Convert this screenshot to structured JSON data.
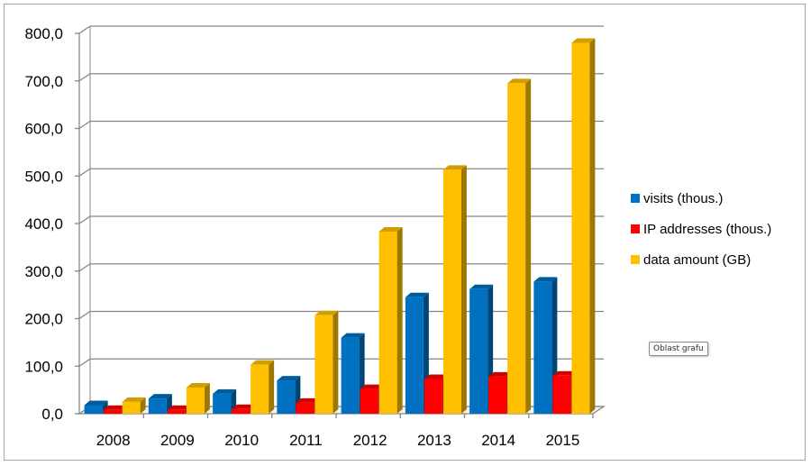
{
  "chart_data": {
    "type": "bar",
    "categories": [
      "2008",
      "2009",
      "2010",
      "2011",
      "2012",
      "2013",
      "2014",
      "2015"
    ],
    "series": [
      {
        "name": "visits (thous.)",
        "color": "#0070c0",
        "values": [
          18,
          32,
          42,
          70,
          160,
          245,
          262,
          278
        ]
      },
      {
        "name": "IP addresses (thous.)",
        "color": "#ff0000",
        "values": [
          8,
          8,
          10,
          23,
          52,
          73,
          78,
          80
        ]
      },
      {
        "name": "data amount (GB)",
        "color": "#ffc000",
        "values": [
          25,
          55,
          103,
          207,
          383,
          513,
          695,
          780
        ]
      }
    ],
    "ylim": [
      0,
      800
    ],
    "yticks": [
      "0,0",
      "100,0",
      "200,0",
      "300,0",
      "400,0",
      "500,0",
      "600,0",
      "700,0",
      "800,0"
    ],
    "grid": true,
    "legend": "right",
    "title": "",
    "xlabel": "",
    "ylabel": ""
  },
  "tooltip": {
    "label": "Oblast grafu"
  }
}
